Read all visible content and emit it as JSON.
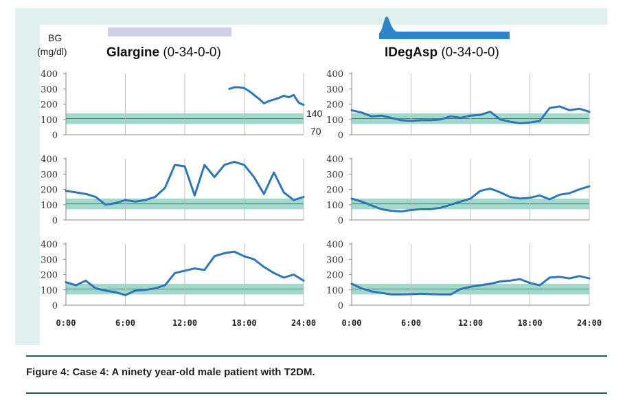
{
  "bg_label_line1": "BG",
  "bg_label_line2": "(mg/dl)",
  "left_title_bold": "Glargine",
  "left_title_rest": " (0-34-0-0)",
  "right_title_bold": "IDegAsp",
  "right_title_rest": " (0-34-0-0)",
  "target_high_label": "140",
  "target_low_label": "70",
  "caption": "Figure 4: Case 4: A ninety year-old male patient with T2DM.",
  "colors": {
    "line": "#2e75b6",
    "band": "#a3d9cc",
    "bar_glargine": "#cfcfe8",
    "bar_idegasp": "#2e86c8",
    "frame": "#dff0ee"
  },
  "chart_data": [
    {
      "type": "line",
      "title": "Glargine (0-34-0-0)",
      "ylabel": "BG (mg/dl)",
      "row": 1,
      "column": "left",
      "x": [
        16.5,
        17,
        17.5,
        18,
        18.5,
        19,
        19.5,
        20,
        20.5,
        21,
        21.5,
        22,
        22.5,
        23,
        23.5,
        24
      ],
      "y": [
        300,
        310,
        310,
        305,
        285,
        260,
        235,
        205,
        220,
        230,
        240,
        255,
        245,
        260,
        210,
        195
      ],
      "xlim": [
        0,
        24
      ],
      "ylim": [
        0,
        400
      ],
      "yticks": [
        "0",
        "100",
        "200",
        "300",
        "400"
      ],
      "xticks": [
        "0:00",
        "6:00",
        "12:00",
        "18:00",
        "24:00"
      ],
      "target_band": [
        70,
        140
      ]
    },
    {
      "type": "line",
      "title": "IDegAsp (0-34-0-0)",
      "ylabel": "BG (mg/dl)",
      "row": 1,
      "column": "right",
      "x": [
        0,
        1,
        2,
        3,
        4,
        5,
        6,
        7,
        8,
        9,
        10,
        11,
        12,
        13,
        14,
        15,
        16,
        17,
        18,
        19,
        20,
        21,
        22,
        23,
        24
      ],
      "y": [
        160,
        145,
        120,
        125,
        110,
        95,
        90,
        95,
        95,
        100,
        120,
        110,
        125,
        130,
        150,
        100,
        85,
        75,
        80,
        90,
        175,
        185,
        160,
        170,
        150
      ],
      "xlim": [
        0,
        24
      ],
      "ylim": [
        0,
        400
      ],
      "yticks": [
        "0",
        "100",
        "200",
        "300",
        "400"
      ],
      "xticks": [
        "0:00",
        "6:00",
        "12:00",
        "18:00",
        "24:00"
      ],
      "target_band": [
        70,
        140
      ]
    },
    {
      "type": "line",
      "title": "Glargine (0-34-0-0)",
      "ylabel": "BG (mg/dl)",
      "row": 2,
      "column": "left",
      "x": [
        0,
        1,
        2,
        3,
        4,
        5,
        6,
        7,
        8,
        9,
        10,
        11,
        12,
        13,
        14,
        15,
        16,
        17,
        18,
        19,
        20,
        21,
        22,
        23,
        24
      ],
      "y": [
        190,
        180,
        170,
        150,
        100,
        110,
        130,
        120,
        130,
        150,
        210,
        360,
        350,
        160,
        360,
        280,
        360,
        380,
        360,
        280,
        170,
        310,
        180,
        130,
        150
      ],
      "xlim": [
        0,
        24
      ],
      "ylim": [
        0,
        400
      ],
      "yticks": [
        "0",
        "100",
        "200",
        "300",
        "400"
      ],
      "xticks": [
        "0:00",
        "6:00",
        "12:00",
        "18:00",
        "24:00"
      ],
      "target_band": [
        70,
        140
      ]
    },
    {
      "type": "line",
      "title": "IDegAsp (0-34-0-0)",
      "ylabel": "BG (mg/dl)",
      "row": 2,
      "column": "right",
      "x": [
        0,
        1,
        2,
        3,
        4,
        5,
        6,
        7,
        8,
        9,
        10,
        11,
        12,
        13,
        14,
        15,
        16,
        17,
        18,
        19,
        20,
        21,
        22,
        23,
        24
      ],
      "y": [
        140,
        120,
        95,
        70,
        60,
        55,
        65,
        70,
        70,
        80,
        100,
        120,
        140,
        190,
        205,
        180,
        150,
        140,
        145,
        160,
        135,
        165,
        175,
        200,
        220
      ],
      "xlim": [
        0,
        24
      ],
      "ylim": [
        0,
        400
      ],
      "yticks": [
        "0",
        "100",
        "200",
        "300",
        "400"
      ],
      "xticks": [
        "0:00",
        "6:00",
        "12:00",
        "18:00",
        "24:00"
      ],
      "target_band": [
        70,
        140
      ]
    },
    {
      "type": "line",
      "title": "Glargine (0-34-0-0)",
      "ylabel": "BG (mg/dl)",
      "row": 3,
      "column": "left",
      "x": [
        0,
        1,
        2,
        3,
        4,
        5,
        6,
        7,
        8,
        9,
        10,
        11,
        12,
        13,
        14,
        15,
        16,
        17,
        18,
        19,
        20,
        21,
        22,
        23,
        24
      ],
      "y": [
        150,
        130,
        160,
        110,
        95,
        85,
        65,
        95,
        100,
        110,
        130,
        210,
        225,
        240,
        230,
        320,
        340,
        350,
        320,
        300,
        250,
        210,
        180,
        200,
        160
      ],
      "xlim": [
        0,
        24
      ],
      "ylim": [
        0,
        400
      ],
      "yticks": [
        "0",
        "100",
        "200",
        "300",
        "400"
      ],
      "xticks": [
        "0:00",
        "6:00",
        "12:00",
        "18:00",
        "24:00"
      ],
      "target_band": [
        70,
        140
      ]
    },
    {
      "type": "line",
      "title": "IDegAsp (0-34-0-0)",
      "ylabel": "BG (mg/dl)",
      "row": 3,
      "column": "right",
      "x": [
        0,
        1,
        2,
        3,
        4,
        5,
        6,
        7,
        8,
        9,
        10,
        11,
        12,
        13,
        14,
        15,
        16,
        17,
        18,
        19,
        20,
        21,
        22,
        23,
        24
      ],
      "y": [
        140,
        110,
        90,
        80,
        70,
        70,
        72,
        75,
        72,
        70,
        70,
        105,
        120,
        130,
        140,
        155,
        160,
        170,
        145,
        130,
        180,
        185,
        175,
        190,
        175
      ],
      "xlim": [
        0,
        24
      ],
      "ylim": [
        0,
        400
      ],
      "yticks": [
        "0",
        "100",
        "200",
        "300",
        "400"
      ],
      "xticks": [
        "0:00",
        "6:00",
        "12:00",
        "18:00",
        "24:00"
      ],
      "target_band": [
        70,
        140
      ]
    }
  ]
}
